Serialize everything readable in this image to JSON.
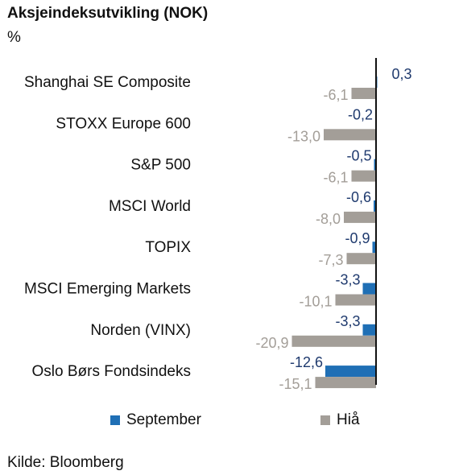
{
  "header": {
    "title": "Aksjeindeksutvikling (NOK)",
    "unit": "%"
  },
  "footer": {
    "source": "Kilde: Bloomberg"
  },
  "colors": {
    "september": "#1f6fb5",
    "hia": "#a39e98",
    "september_label": "#1f3a6e",
    "hia_label": "#a39e98"
  },
  "chart_data": {
    "type": "bar",
    "orientation": "horizontal",
    "categories": [
      "Shanghai SE Composite",
      "STOXX Europe 600",
      "S&P 500",
      "MSCI World",
      "TOPIX",
      "MSCI Emerging Markets",
      "Norden (VINX)",
      "Oslo Børs Fondsindeks"
    ],
    "series": [
      {
        "name": "September",
        "values": [
          0.3,
          -0.2,
          -0.5,
          -0.6,
          -0.9,
          -3.3,
          -3.3,
          -12.6
        ],
        "labels": [
          "0,3",
          "-0,2",
          "-0,5",
          "-0,6",
          "-0,9",
          "-3,3",
          "-3,3",
          "-12,6"
        ]
      },
      {
        "name": "Hiå",
        "values": [
          -6.1,
          -13.0,
          -6.1,
          -8.0,
          -7.3,
          -10.1,
          -20.9,
          -15.1
        ],
        "labels": [
          "-6,1",
          "-13,0",
          "-6,1",
          "-8,0",
          "-7,3",
          "-10,1",
          "-20,9",
          "-15,1"
        ]
      }
    ],
    "legend": "bottom"
  }
}
